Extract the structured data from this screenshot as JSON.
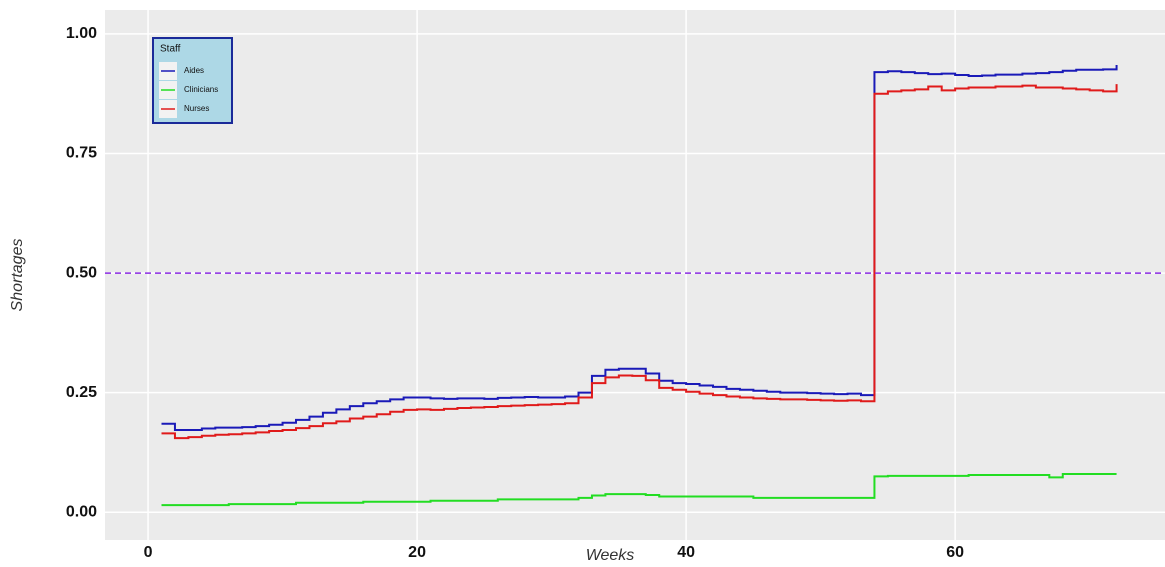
{
  "chart_data": {
    "type": "step",
    "x_label": "Weeks",
    "y_label": "Shortages",
    "x": [
      1,
      2,
      3,
      4,
      5,
      6,
      7,
      8,
      9,
      10,
      11,
      12,
      13,
      14,
      15,
      16,
      17,
      18,
      19,
      20,
      21,
      22,
      23,
      24,
      25,
      26,
      27,
      28,
      29,
      30,
      31,
      32,
      33,
      34,
      35,
      36,
      37,
      38,
      39,
      40,
      41,
      42,
      43,
      44,
      45,
      46,
      47,
      48,
      49,
      50,
      51,
      52,
      53,
      54,
      55,
      56,
      57,
      58,
      59,
      60,
      61,
      62,
      63,
      64,
      65,
      66,
      67,
      68,
      69,
      70,
      71,
      72
    ],
    "series": [
      {
        "name": "Aides",
        "color": "#1a1ab8",
        "values": [
          0.185,
          0.172,
          0.172,
          0.175,
          0.177,
          0.177,
          0.178,
          0.18,
          0.183,
          0.187,
          0.193,
          0.2,
          0.208,
          0.215,
          0.222,
          0.228,
          0.232,
          0.236,
          0.24,
          0.24,
          0.238,
          0.237,
          0.238,
          0.238,
          0.237,
          0.239,
          0.24,
          0.241,
          0.24,
          0.24,
          0.242,
          0.25,
          0.285,
          0.298,
          0.3,
          0.3,
          0.29,
          0.275,
          0.27,
          0.268,
          0.265,
          0.262,
          0.258,
          0.256,
          0.254,
          0.252,
          0.25,
          0.25,
          0.249,
          0.248,
          0.247,
          0.248,
          0.245,
          0.92,
          0.922,
          0.92,
          0.918,
          0.916,
          0.917,
          0.914,
          0.912,
          0.913,
          0.915,
          0.915,
          0.917,
          0.918,
          0.92,
          0.923,
          0.925,
          0.925,
          0.926,
          0.935
        ]
      },
      {
        "name": "Clinicians",
        "color": "#22dd22",
        "values": [
          0.015,
          0.015,
          0.015,
          0.015,
          0.015,
          0.017,
          0.017,
          0.017,
          0.017,
          0.017,
          0.02,
          0.02,
          0.02,
          0.02,
          0.02,
          0.022,
          0.022,
          0.022,
          0.022,
          0.022,
          0.024,
          0.024,
          0.024,
          0.024,
          0.024,
          0.027,
          0.027,
          0.027,
          0.027,
          0.027,
          0.027,
          0.03,
          0.035,
          0.038,
          0.038,
          0.038,
          0.036,
          0.033,
          0.033,
          0.033,
          0.033,
          0.033,
          0.033,
          0.033,
          0.03,
          0.03,
          0.03,
          0.03,
          0.03,
          0.03,
          0.03,
          0.03,
          0.03,
          0.075,
          0.076,
          0.076,
          0.076,
          0.076,
          0.076,
          0.076,
          0.078,
          0.078,
          0.078,
          0.078,
          0.078,
          0.078,
          0.073,
          0.08,
          0.08,
          0.08,
          0.08,
          0.08
        ]
      },
      {
        "name": "Nurses",
        "color": "#e01a1a",
        "values": [
          0.165,
          0.155,
          0.157,
          0.16,
          0.162,
          0.163,
          0.165,
          0.167,
          0.17,
          0.172,
          0.176,
          0.18,
          0.186,
          0.19,
          0.196,
          0.2,
          0.205,
          0.21,
          0.214,
          0.215,
          0.214,
          0.216,
          0.218,
          0.219,
          0.22,
          0.222,
          0.223,
          0.224,
          0.225,
          0.226,
          0.228,
          0.24,
          0.27,
          0.282,
          0.286,
          0.285,
          0.276,
          0.26,
          0.256,
          0.252,
          0.248,
          0.245,
          0.242,
          0.24,
          0.238,
          0.237,
          0.236,
          0.236,
          0.235,
          0.234,
          0.233,
          0.234,
          0.232,
          0.875,
          0.88,
          0.882,
          0.884,
          0.89,
          0.882,
          0.886,
          0.888,
          0.888,
          0.89,
          0.89,
          0.892,
          0.888,
          0.888,
          0.886,
          0.884,
          0.882,
          0.88,
          0.895
        ]
      }
    ],
    "legend_title": "Staff",
    "legend": "top-left",
    "hline": {
      "value": 0.5,
      "color": "#8a2be2"
    },
    "xlim": [
      -3.2,
      75.6
    ],
    "ylim": [
      -0.058,
      1.05
    ],
    "xticks": [
      0,
      20,
      40,
      60
    ],
    "yticks": [
      {
        "value": 0,
        "label": "0.00"
      },
      {
        "value": 0.25,
        "label": "0.25"
      },
      {
        "value": 0.5,
        "label": "0.50"
      },
      {
        "value": 0.75,
        "label": "0.75"
      },
      {
        "value": 1,
        "label": "1.00"
      }
    ],
    "grid": true
  }
}
